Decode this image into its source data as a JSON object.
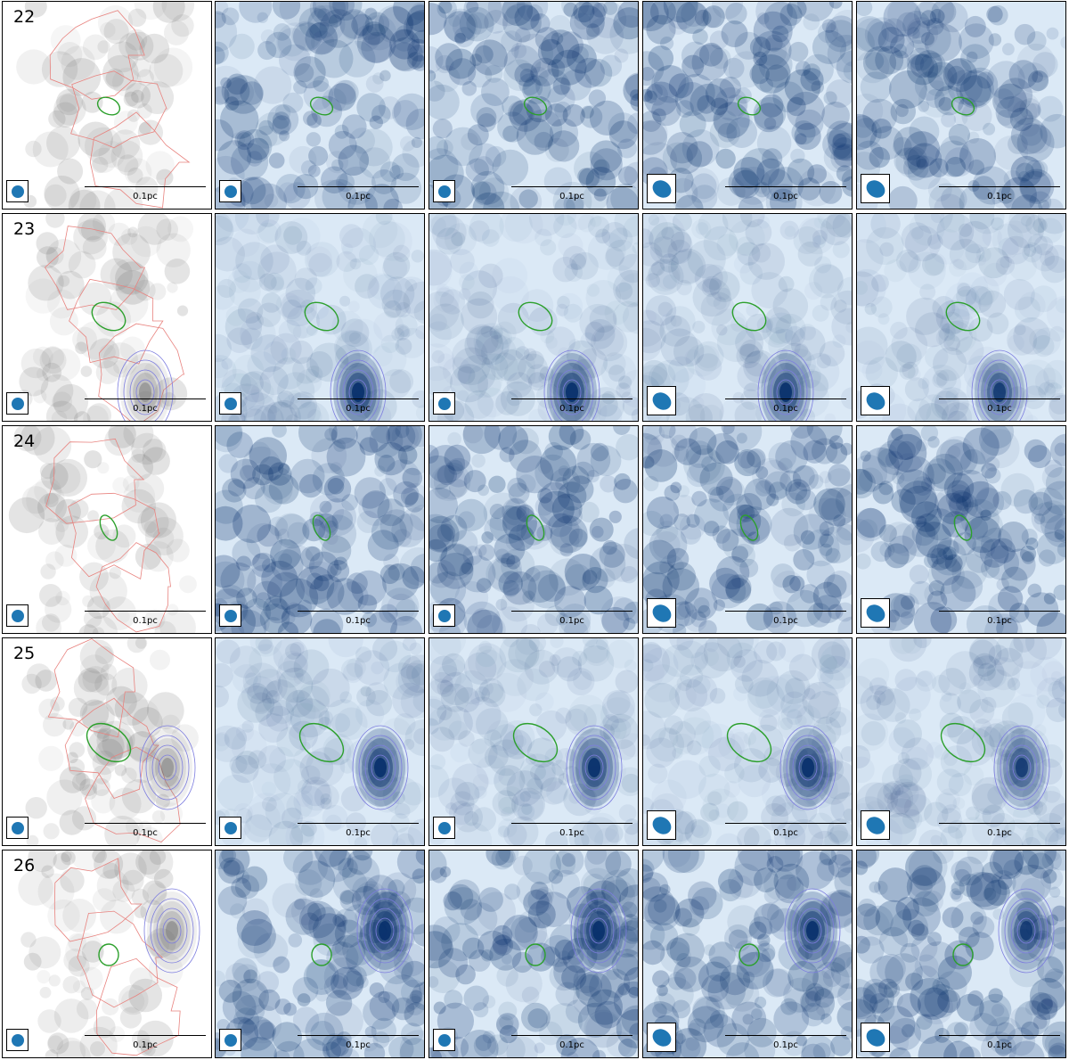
{
  "figure": {
    "scale_label": "0.1pc",
    "colors": {
      "gray_map": "#6e6e6e",
      "blue_map": "#08306b",
      "ellipse": "#2ca02c",
      "red_contour": "#e8837f",
      "blue_contour": "#7d7ddf",
      "beam": "#1f77b4"
    },
    "rows": [
      {
        "label": "22"
      },
      {
        "label": "23"
      },
      {
        "label": "24"
      },
      {
        "label": "25"
      },
      {
        "label": "26"
      }
    ],
    "columns": [
      {
        "colormap": "gray"
      },
      {
        "colormap": "blue"
      },
      {
        "colormap": "blue"
      },
      {
        "colormap": "blue"
      },
      {
        "colormap": "blue"
      }
    ]
  }
}
